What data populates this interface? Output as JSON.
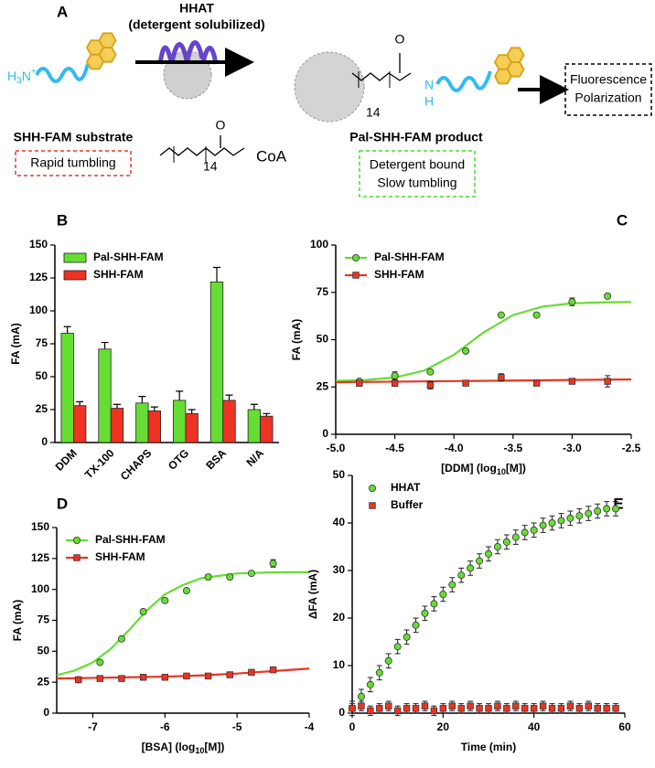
{
  "diagram": {
    "panel": "A",
    "enzyme": "HHAT",
    "enzyme_note": "(detergent solubilized)",
    "amine": [
      "H",
      "3",
      "N",
      "+"
    ],
    "substrate": "SHH-FAM substrate",
    "substrate_state": "Rapid tumbling",
    "acyl_oxygen": "O",
    "acyl_repeat": "14",
    "acyl_group": "CoA",
    "product_oxygen": "O",
    "product_repeat": "14",
    "amide_n": "N",
    "amide_h": "H",
    "product": "Pal-SHH-FAM product",
    "product_state": [
      "Detergent bound",
      "Slow tumbling"
    ],
    "readout": [
      "Fluorescence",
      "Polarization"
    ]
  },
  "chart_data": [
    {
      "panel": "B",
      "type": "bar",
      "categories": [
        "DDM",
        "TX-100",
        "CHAPS",
        "OTG",
        "BSA",
        "N/A"
      ],
      "ylabel": "FA (mA)",
      "ylim": [
        0,
        150
      ],
      "yticks": [
        0,
        25,
        50,
        75,
        100,
        125,
        150
      ],
      "legend": "upper-left",
      "series": [
        {
          "name": "Pal-SHH-FAM",
          "color": "#66dd33",
          "values": [
            83,
            71,
            30,
            32,
            122,
            25
          ],
          "errors": [
            5,
            5,
            5,
            7,
            11,
            4
          ]
        },
        {
          "name": "SHH-FAM",
          "color": "#ee3322",
          "values": [
            28,
            26,
            24,
            22,
            32,
            20
          ],
          "errors": [
            3,
            3,
            3,
            3,
            4,
            2
          ]
        }
      ]
    },
    {
      "panel": "C",
      "type": "scatter",
      "x": [
        -4.8,
        -4.5,
        -4.2,
        -3.9,
        -3.6,
        -3.3,
        -3.0,
        -2.7
      ],
      "xlim": [
        -5,
        -2.5
      ],
      "xticks": [
        {
          "value": -5,
          "label": "-5.0"
        },
        -4.5,
        {
          "value": -4,
          "label": "-4.0"
        },
        -3.5,
        {
          "value": -3,
          "label": "-3.0"
        },
        -2.5
      ],
      "ylim": [
        0,
        100
      ],
      "yticks": [
        0,
        25,
        50,
        75,
        100
      ],
      "xlabel": [
        "[DDM] (log",
        "10",
        "[M])"
      ],
      "ylabel": "FA (mA)",
      "legend": "upper-left",
      "series": [
        {
          "name": "Pal-SHH-FAM",
          "color": "#66dd33",
          "marker": "circle",
          "values": [
            28,
            31,
            33,
            44,
            63,
            63,
            70,
            73
          ],
          "errors": [
            1,
            2,
            1,
            1,
            1,
            1,
            2,
            0.5
          ],
          "fit": {
            "x": [
              -5,
              -4.75,
              -4.5,
              -4.25,
              -4,
              -3.75,
              -3.5,
              -3.25,
              -3,
              -2.75,
              -2.5
            ],
            "values": [
              28.2,
              28.7,
              30,
              33.7,
              42,
              53.8,
              63,
              67.5,
              69.2,
              69.7,
              69.9
            ]
          }
        },
        {
          "name": "SHH-FAM",
          "color": "#ee3322",
          "marker": "square",
          "values": [
            27,
            27,
            26,
            27,
            30,
            27,
            28,
            28
          ],
          "errors": [
            1.5,
            1.5,
            2,
            1,
            2,
            1,
            1,
            3
          ],
          "fit": {
            "x": [
              -5,
              -2.5
            ],
            "values": [
              27.5,
              29
            ]
          }
        }
      ]
    },
    {
      "panel": "D",
      "type": "scatter",
      "x": [
        -7.2,
        -6.9,
        -6.6,
        -6.3,
        -6.0,
        -5.7,
        -5.4,
        -5.1,
        -4.8,
        -4.5
      ],
      "xlim": [
        -7.5,
        -4
      ],
      "xticks": [
        -7,
        -6,
        -5,
        -4
      ],
      "ylim": [
        0,
        150
      ],
      "yticks": [
        0,
        25,
        50,
        75,
        100,
        125,
        150
      ],
      "xlabel": [
        "[BSA] (log",
        "10",
        "[M])"
      ],
      "ylabel": "FA (mA)",
      "legend": "upper-left",
      "series": [
        {
          "name": "Pal-SHH-FAM",
          "color": "#66dd33",
          "marker": "circle",
          "values": [
            27,
            41,
            60,
            82,
            91,
            99,
            110,
            110,
            113,
            121
          ],
          "errors": [
            1,
            1,
            1,
            2,
            1,
            1,
            2,
            1,
            1,
            3
          ],
          "fit": {
            "x": [
              -7.5,
              -7.25,
              -7,
              -6.75,
              -6.5,
              -6.25,
              -6,
              -5.75,
              -5.5,
              -5,
              -4.5,
              -4
            ],
            "values": [
              30.6,
              34.5,
              41,
              52,
              67,
              83,
              96,
              103.5,
              109,
              112.9,
              113.8,
              114
            ]
          }
        },
        {
          "name": "SHH-FAM",
          "color": "#ee3322",
          "marker": "square",
          "values": [
            27,
            28,
            28,
            29,
            29,
            30,
            30,
            31,
            33,
            35
          ],
          "errors": [
            1,
            1,
            1,
            1,
            1,
            1,
            1,
            1,
            1,
            1
          ],
          "fit": {
            "x": [
              -7.5,
              -7,
              -6.5,
              -6,
              -5.5,
              -5,
              -4.5,
              -4
            ],
            "values": [
              28,
              28.5,
              29,
              29.5,
              30.5,
              32,
              34,
              36
            ]
          }
        }
      ]
    },
    {
      "panel": "E",
      "type": "scatter",
      "x": [
        0,
        2,
        4,
        6,
        8,
        10,
        12,
        14,
        16,
        18,
        20,
        22,
        24,
        26,
        28,
        30,
        32,
        34,
        36,
        38,
        40,
        42,
        44,
        46,
        48,
        50,
        52,
        54,
        56,
        58
      ],
      "xlim": [
        0,
        60
      ],
      "xticks": [
        0,
        20,
        40,
        60
      ],
      "ylim": [
        0,
        50
      ],
      "yticks": [
        0,
        10,
        20,
        30,
        40,
        50
      ],
      "xlabel": "Time (min)",
      "ylabel": "ΔFA (mA)",
      "legend": "upper-left",
      "series": [
        {
          "name": "HHAT",
          "color": "#66dd33",
          "marker": "circle",
          "values": [
            1,
            3.5,
            6,
            8.5,
            11,
            14,
            16,
            18.5,
            21,
            23,
            25,
            27,
            29,
            30.5,
            32,
            33.5,
            35,
            36,
            37,
            38,
            38.5,
            39.5,
            40,
            40.5,
            41,
            41.5,
            42,
            42.5,
            43,
            43
          ],
          "errors": [
            1.5,
            1.5,
            1.5,
            1.5,
            1.5,
            1.5,
            1.5,
            1.5,
            1.5,
            1.5,
            1.5,
            1.5,
            1.5,
            1.5,
            1.5,
            1.5,
            1.5,
            1.5,
            1.5,
            1.5,
            1.5,
            1.5,
            1.5,
            1.5,
            1.5,
            1.5,
            1.5,
            1.5,
            1.5,
            1.5
          ]
        },
        {
          "name": "Buffer",
          "color": "#ee3322",
          "marker": "square",
          "values": [
            1,
            1.5,
            0.5,
            1,
            1.5,
            0.5,
            1,
            1,
            1.5,
            0.5,
            1,
            1.5,
            1,
            1.5,
            1,
            1,
            1.5,
            1,
            1.5,
            1,
            1,
            1.5,
            1,
            1,
            1.5,
            1,
            1.5,
            1,
            1,
            1
          ],
          "errors": [
            1,
            1,
            1,
            1,
            1,
            1,
            1,
            1,
            1,
            1,
            1,
            1,
            1,
            1,
            1,
            1,
            1,
            1,
            1,
            1,
            1,
            1,
            1,
            1,
            1,
            1,
            1,
            1,
            1,
            1
          ]
        }
      ]
    }
  ]
}
